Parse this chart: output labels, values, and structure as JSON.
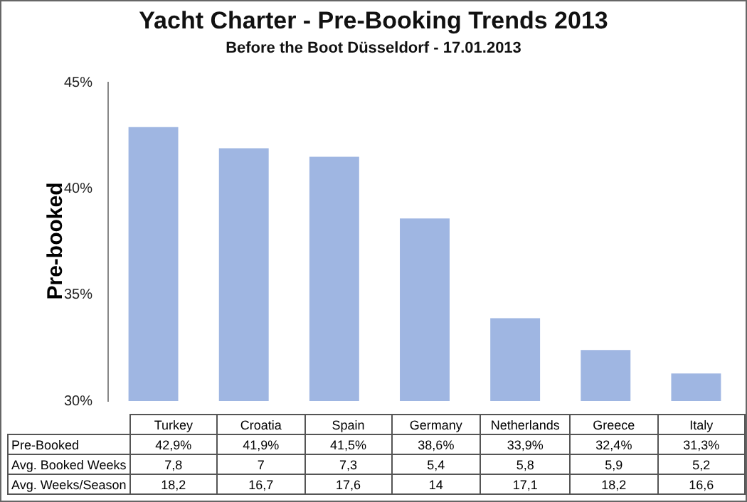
{
  "chart_data": {
    "type": "bar",
    "title": "Yacht Charter - Pre-Booking Trends 2013",
    "subtitle": "Before the Boot Düsseldorf - 17.01.2013",
    "ylabel": "Pre-booked",
    "categories": [
      "Turkey",
      "Croatia",
      "Spain",
      "Germany",
      "Netherlands",
      "Greece",
      "Italy"
    ],
    "series": [
      {
        "name": "Pre-Booked",
        "color": "#9fb6e2",
        "values": [
          42.9,
          41.9,
          41.5,
          38.6,
          33.9,
          32.4,
          31.3
        ],
        "value_labels": [
          "42,9%",
          "41,9%",
          "41,5%",
          "38,6%",
          "33,9%",
          "32,4%",
          "31,3%"
        ]
      }
    ],
    "ylim": [
      30,
      45
    ],
    "yticks": [
      {
        "value": 30,
        "label": "30%"
      },
      {
        "value": 35,
        "label": "35%"
      },
      {
        "value": 40,
        "label": "40%"
      },
      {
        "value": 45,
        "label": "45%"
      }
    ],
    "tick_labels": "y",
    "grid": false,
    "legend": false,
    "annotations": [
      "Avg. Booked Weeks",
      "7,8",
      "7",
      "7,3",
      "5,4",
      "5,8",
      "5,9",
      "5,2",
      "Avg. Weeks/Season",
      "18,2",
      "16,7",
      "17,6",
      "14",
      "17,1",
      "18,2",
      "16,6"
    ]
  }
}
